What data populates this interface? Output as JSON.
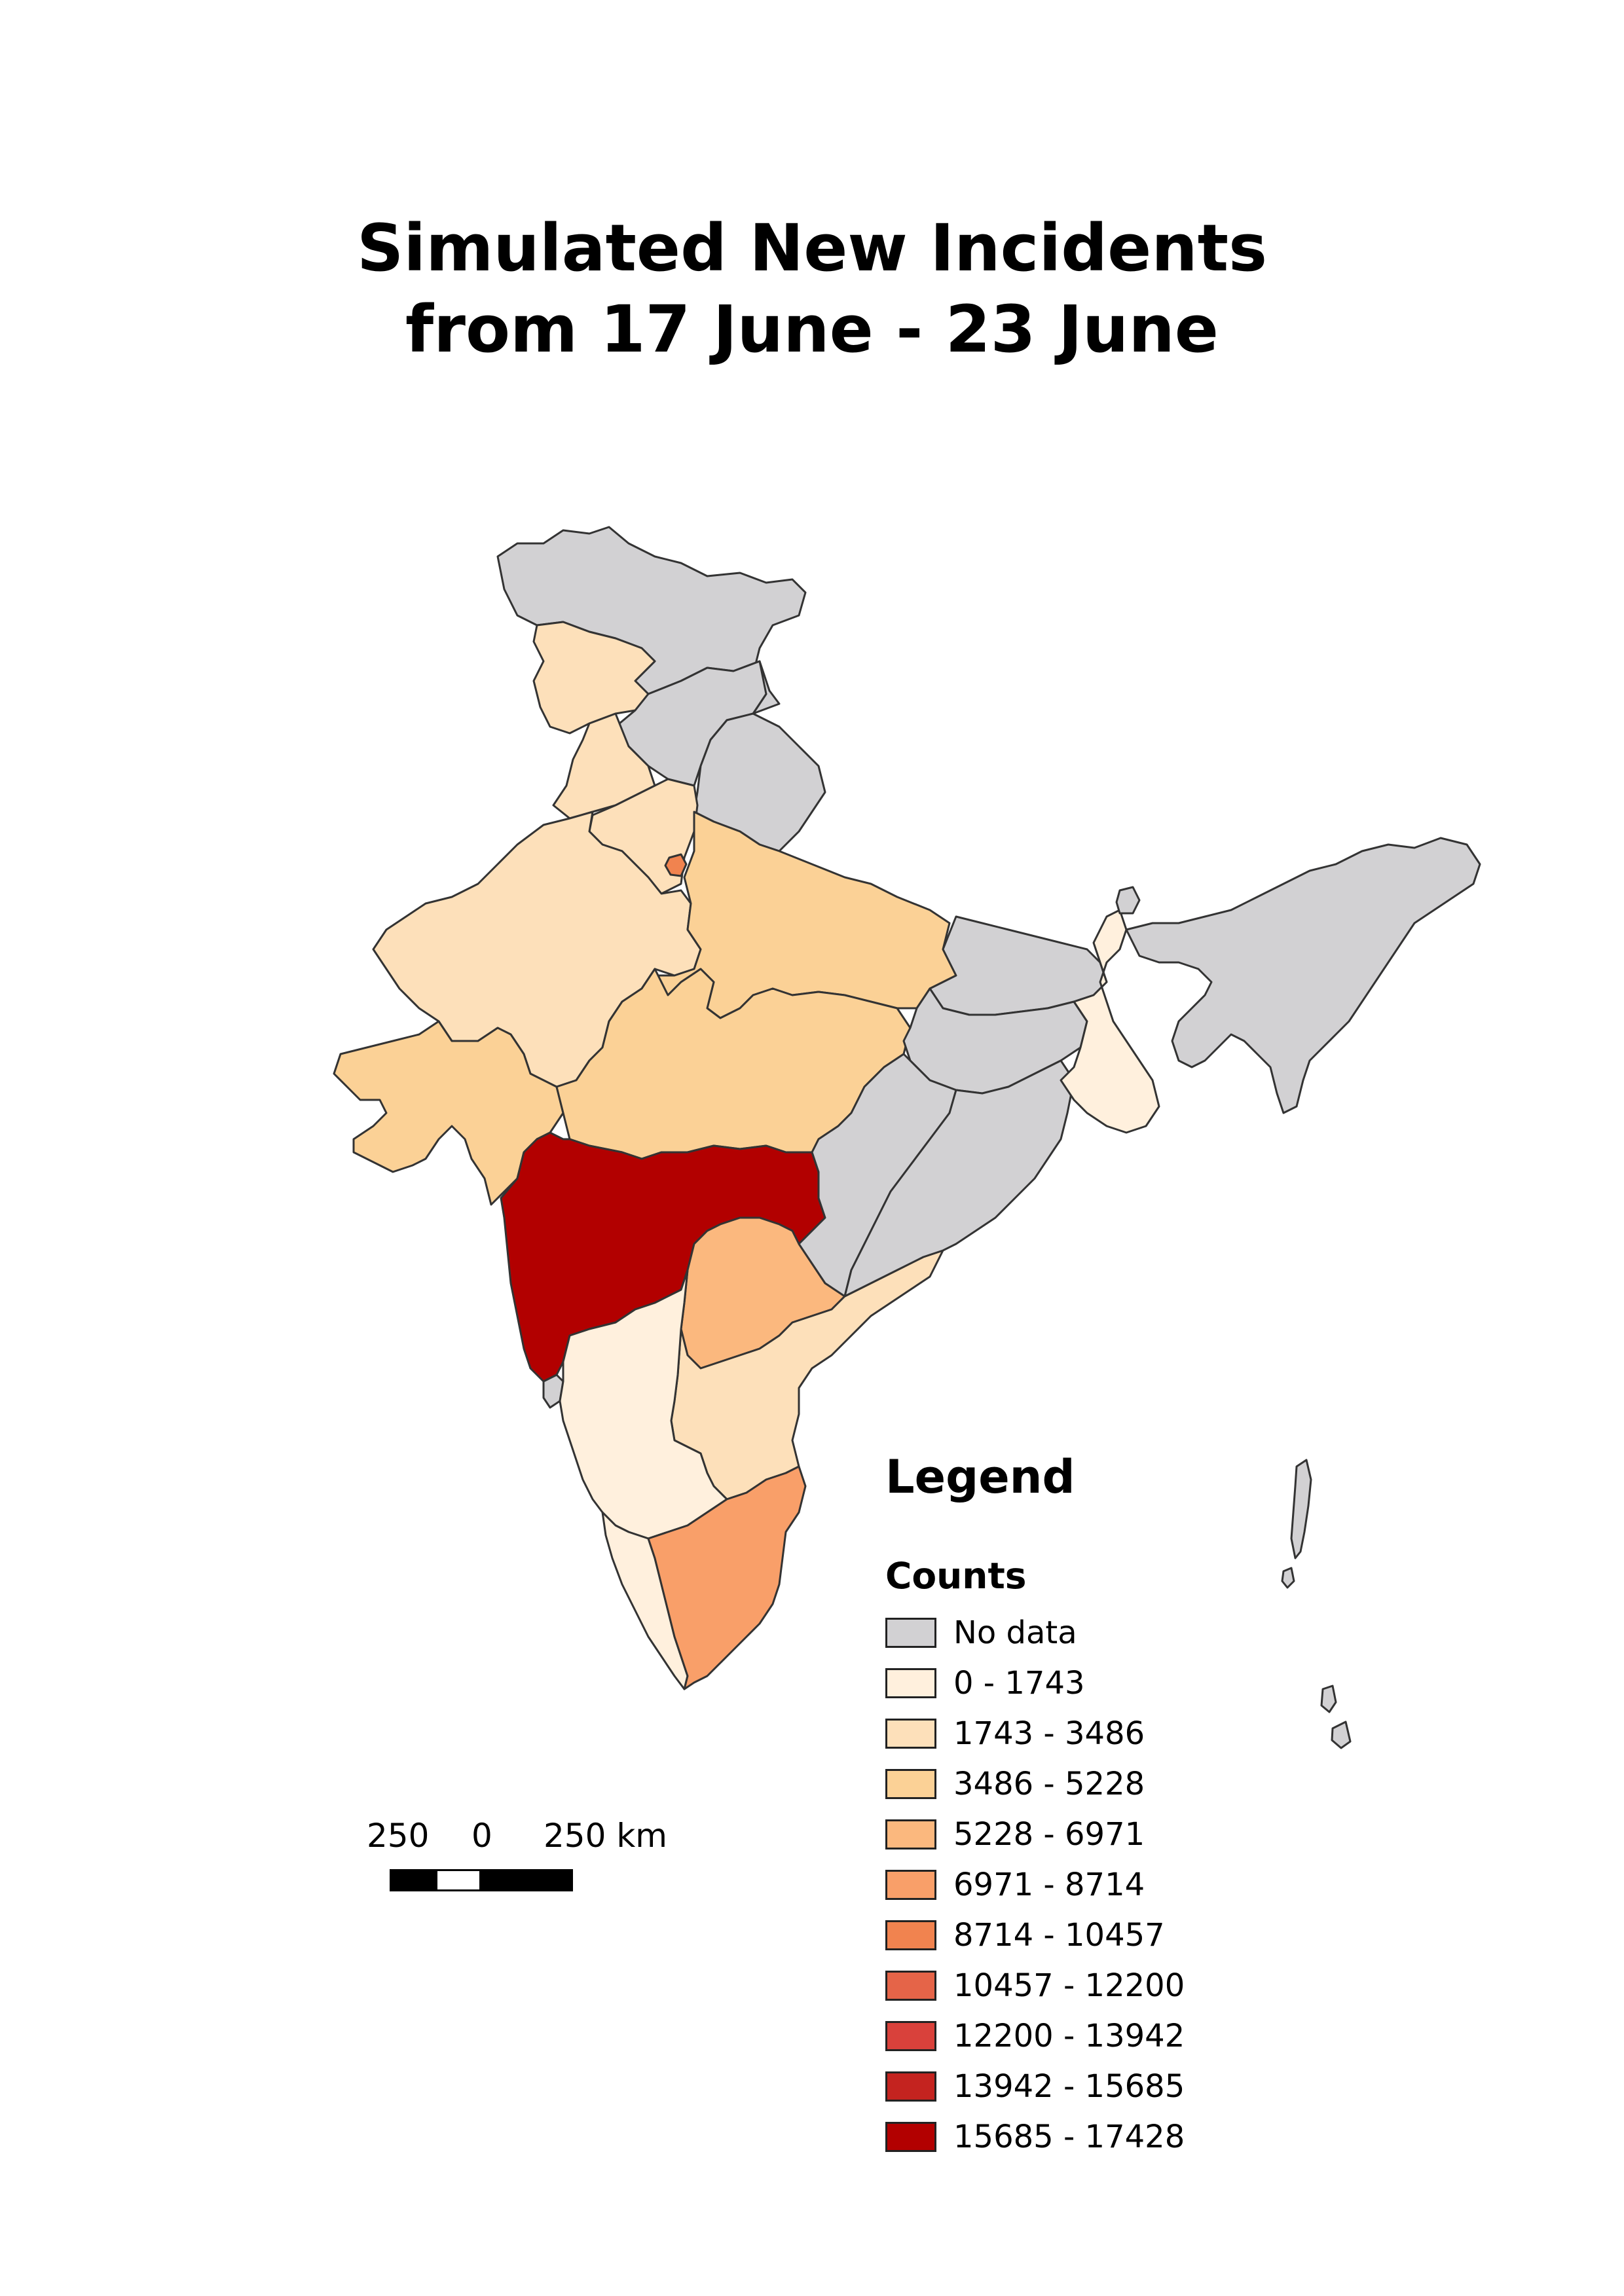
{
  "title": {
    "line1": "Simulated New Incidents",
    "line2": "from 17 June - 23 June"
  },
  "legend": {
    "title": "Legend",
    "subtitle": "Counts",
    "items": [
      {
        "label": "No data",
        "color": "#d2d1d3"
      },
      {
        "label": "0 - 1743",
        "color": "#fff0dd"
      },
      {
        "label": "1743 - 3486",
        "color": "#fde0ba"
      },
      {
        "label": "3486 - 5228",
        "color": "#fbd196"
      },
      {
        "label": "5228 - 6971",
        "color": "#fbb87e"
      },
      {
        "label": "6971 - 8714",
        "color": "#f99f69"
      },
      {
        "label": "8714 - 10457",
        "color": "#f1834f"
      },
      {
        "label": "10457 - 12200",
        "color": "#e56448"
      },
      {
        "label": "12200 - 13942",
        "color": "#d9413b"
      },
      {
        "label": "13942 - 15685",
        "color": "#c4231f"
      },
      {
        "label": "15685 - 17428",
        "color": "#b20000"
      }
    ]
  },
  "scale_bar": {
    "left_label": "250",
    "mid_label": "0",
    "right_label": "250 km"
  },
  "regions": [
    {
      "name": "jammu-kashmir",
      "category": "No data"
    },
    {
      "name": "himachal",
      "category": "No data"
    },
    {
      "name": "uttarakhand",
      "category": "No data"
    },
    {
      "name": "ladakh",
      "category": "1743 - 3486"
    },
    {
      "name": "punjab",
      "category": "1743 - 3486"
    },
    {
      "name": "haryana",
      "category": "1743 - 3486"
    },
    {
      "name": "delhi",
      "category": "8714 - 10457"
    },
    {
      "name": "rajasthan",
      "category": "1743 - 3486"
    },
    {
      "name": "uttar-pradesh",
      "category": "3486 - 5228"
    },
    {
      "name": "gujarat",
      "category": "3486 - 5228"
    },
    {
      "name": "madhya-pradesh",
      "category": "3486 - 5228"
    },
    {
      "name": "maharashtra",
      "category": "15685 - 17428"
    },
    {
      "name": "telangana",
      "category": "5228 - 6971"
    },
    {
      "name": "andhra-pradesh",
      "category": "1743 - 3486"
    },
    {
      "name": "karnataka",
      "category": "0 - 1743"
    },
    {
      "name": "kerala",
      "category": "0 - 1743"
    },
    {
      "name": "tamil-nadu",
      "category": "6971 - 8714"
    },
    {
      "name": "goa",
      "category": "No data"
    },
    {
      "name": "bihar",
      "category": "No data"
    },
    {
      "name": "jharkhand",
      "category": "No data"
    },
    {
      "name": "chhattisgarh",
      "category": "No data"
    },
    {
      "name": "odisha",
      "category": "No data"
    },
    {
      "name": "west-bengal",
      "category": "0 - 1743"
    },
    {
      "name": "sikkim",
      "category": "No data"
    },
    {
      "name": "northeast",
      "category": "No data"
    },
    {
      "name": "andaman-nicobar",
      "category": "No data"
    }
  ]
}
